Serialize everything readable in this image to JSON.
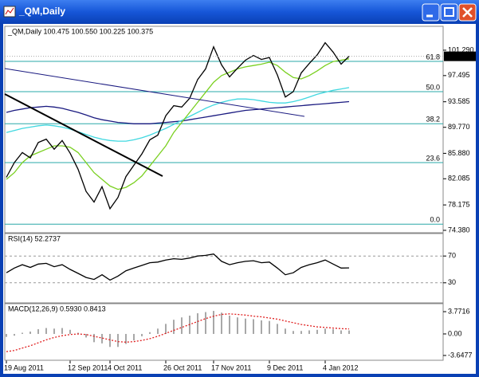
{
  "window": {
    "title": "_QM,Daily"
  },
  "chart_data": [
    {
      "type": "line",
      "title": "_QM,Daily  100.475 100.550 100.225 100.375",
      "categories": [
        "19 Aug 2011",
        null,
        null,
        null,
        null,
        null,
        null,
        null,
        "12 Sep 2011",
        null,
        null,
        null,
        null,
        "4 Oct 2011",
        null,
        null,
        null,
        null,
        null,
        null,
        "26 Oct 2011",
        null,
        null,
        null,
        null,
        null,
        "17 Nov 2011",
        null,
        null,
        null,
        null,
        null,
        null,
        "9 Dec 2011",
        null,
        null,
        null,
        null,
        null,
        null,
        "4 Jan 2012",
        null,
        null,
        null
      ],
      "ylim": [
        74.02,
        104.5
      ],
      "yticks": [
        {
          "value": 101.29,
          "label": "101.290"
        },
        97.495,
        93.585,
        {
          "value": 89.77,
          "label": "89.770"
        },
        {
          "value": 85.88,
          "label": "85.880"
        },
        82.085,
        78.175,
        {
          "value": 74.38,
          "label": "74.380"
        }
      ],
      "last_price": 100.375,
      "fib_color": "#2aa8a8",
      "fib_levels": [
        {
          "value": 99.62,
          "label": "61.8"
        },
        {
          "value": 95.1,
          "label": "50.0"
        },
        {
          "value": 90.3,
          "label": "38.2"
        },
        {
          "value": 84.5,
          "label": "23.6"
        },
        {
          "value": 75.3,
          "label": "0.0"
        }
      ],
      "series": [
        {
          "color": "#1a1a80",
          "values": [
            92.0,
            92.3,
            92.5,
            92.7,
            92.8,
            92.9,
            92.8,
            92.6,
            92.3,
            92.0,
            91.6,
            91.2,
            90.9,
            90.7,
            90.5,
            90.4,
            90.3,
            90.3,
            90.3,
            90.4,
            90.5,
            90.6,
            90.7,
            90.9,
            91.1,
            91.3,
            91.5,
            91.7,
            91.9,
            92.1,
            92.3,
            92.4,
            92.5,
            92.6,
            92.7,
            92.8,
            92.9,
            93.0,
            93.1,
            93.2,
            93.3,
            93.4,
            93.5,
            93.6
          ]
        },
        {
          "color": "#40d8e0",
          "values": [
            89.0,
            89.3,
            89.6,
            89.8,
            90.0,
            90.1,
            90.0,
            89.8,
            89.5,
            89.1,
            88.7,
            88.3,
            88.0,
            87.8,
            87.7,
            87.7,
            87.9,
            88.2,
            88.6,
            89.1,
            89.6,
            90.2,
            90.8,
            91.4,
            92.0,
            92.6,
            93.1,
            93.5,
            93.8,
            94.0,
            94.0,
            93.9,
            93.7,
            93.5,
            93.4,
            93.4,
            93.6,
            93.9,
            94.3,
            94.7,
            95.0,
            95.3,
            95.5,
            95.7
          ]
        },
        {
          "color": "#7ad020",
          "values": [
            82,
            83,
            84.5,
            85.5,
            86,
            86.5,
            87,
            87,
            86.8,
            86,
            84.5,
            83,
            82,
            81,
            80.5,
            80.8,
            81.5,
            82.5,
            84,
            85.5,
            87,
            89,
            90.5,
            92,
            93.5,
            95,
            96.5,
            97.5,
            98,
            98.5,
            98.8,
            99,
            99.2,
            99.5,
            99,
            98,
            97.2,
            97,
            97.5,
            98.2,
            99,
            99.6,
            99.8,
            100
          ]
        },
        {
          "color": "#000000",
          "values": [
            82.3,
            84.5,
            86.0,
            85.2,
            87.5,
            88.0,
            86.5,
            87.8,
            85.9,
            83.5,
            80.2,
            78.6,
            80.9,
            77.6,
            79.3,
            82.4,
            84.1,
            85.8,
            87.9,
            88.6,
            91.5,
            93.0,
            92.8,
            94.1,
            96.9,
            98.5,
            101.8,
            99.1,
            97.3,
            98.6,
            99.8,
            100.5,
            99.9,
            100.2,
            97.6,
            94.3,
            95.1,
            97.9,
            99.3,
            100.6,
            102.4,
            101.0,
            99.2,
            100.375
          ]
        }
      ]
    },
    {
      "type": "line",
      "title": "RSI(14) 52.2737",
      "ylim": [
        0,
        100
      ],
      "yticks": [
        70,
        30
      ],
      "series": [
        {
          "color": "#000000",
          "values": [
            45,
            52,
            57,
            53,
            58,
            59,
            54,
            57,
            50,
            44,
            38,
            35,
            42,
            34,
            40,
            48,
            52,
            56,
            60,
            61,
            64,
            66,
            65,
            67,
            70,
            71,
            73,
            62,
            57,
            60,
            62,
            63,
            60,
            61,
            52,
            42,
            45,
            53,
            57,
            60,
            64,
            58,
            52,
            52.2737
          ]
        }
      ]
    },
    {
      "type": "bar",
      "title": "MACD(12,26,9) 0.5930 0.8413",
      "ylim": [
        -4.46,
        4.72
      ],
      "yticks": [
        3.7716,
        {
          "value": 0,
          "label": "0.00"
        },
        -3.6477
      ],
      "series": [
        {
          "type": "bar",
          "color": "#a8a8a8",
          "values": [
            -0.5,
            -0.3,
            0.2,
            0.4,
            0.8,
            1.0,
            0.9,
            1.0,
            0.7,
            0.2,
            -0.6,
            -1.4,
            -1.6,
            -2.2,
            -2.2,
            -1.7,
            -1.1,
            -0.4,
            0.3,
            0.9,
            1.7,
            2.4,
            2.8,
            3.1,
            3.5,
            3.7,
            3.9,
            3.6,
            3.1,
            2.8,
            2.6,
            2.5,
            2.3,
            2.2,
            1.7,
            0.9,
            0.5,
            0.5,
            0.6,
            0.7,
            0.9,
            0.8,
            0.6,
            0.593
          ]
        },
        {
          "type": "line",
          "color": "#e02020",
          "values": [
            -3.0,
            -2.8,
            -2.4,
            -2.0,
            -1.5,
            -1.0,
            -0.6,
            -0.3,
            -0.1,
            0.0,
            -0.1,
            -0.4,
            -0.7,
            -1.0,
            -1.3,
            -1.4,
            -1.3,
            -1.1,
            -0.8,
            -0.4,
            0.1,
            0.6,
            1.1,
            1.6,
            2.1,
            2.6,
            3.0,
            3.3,
            3.4,
            3.3,
            3.2,
            3.0,
            2.9,
            2.7,
            2.5,
            2.2,
            1.9,
            1.6,
            1.4,
            1.2,
            1.1,
            1.0,
            0.9,
            0.8413
          ]
        }
      ]
    }
  ]
}
